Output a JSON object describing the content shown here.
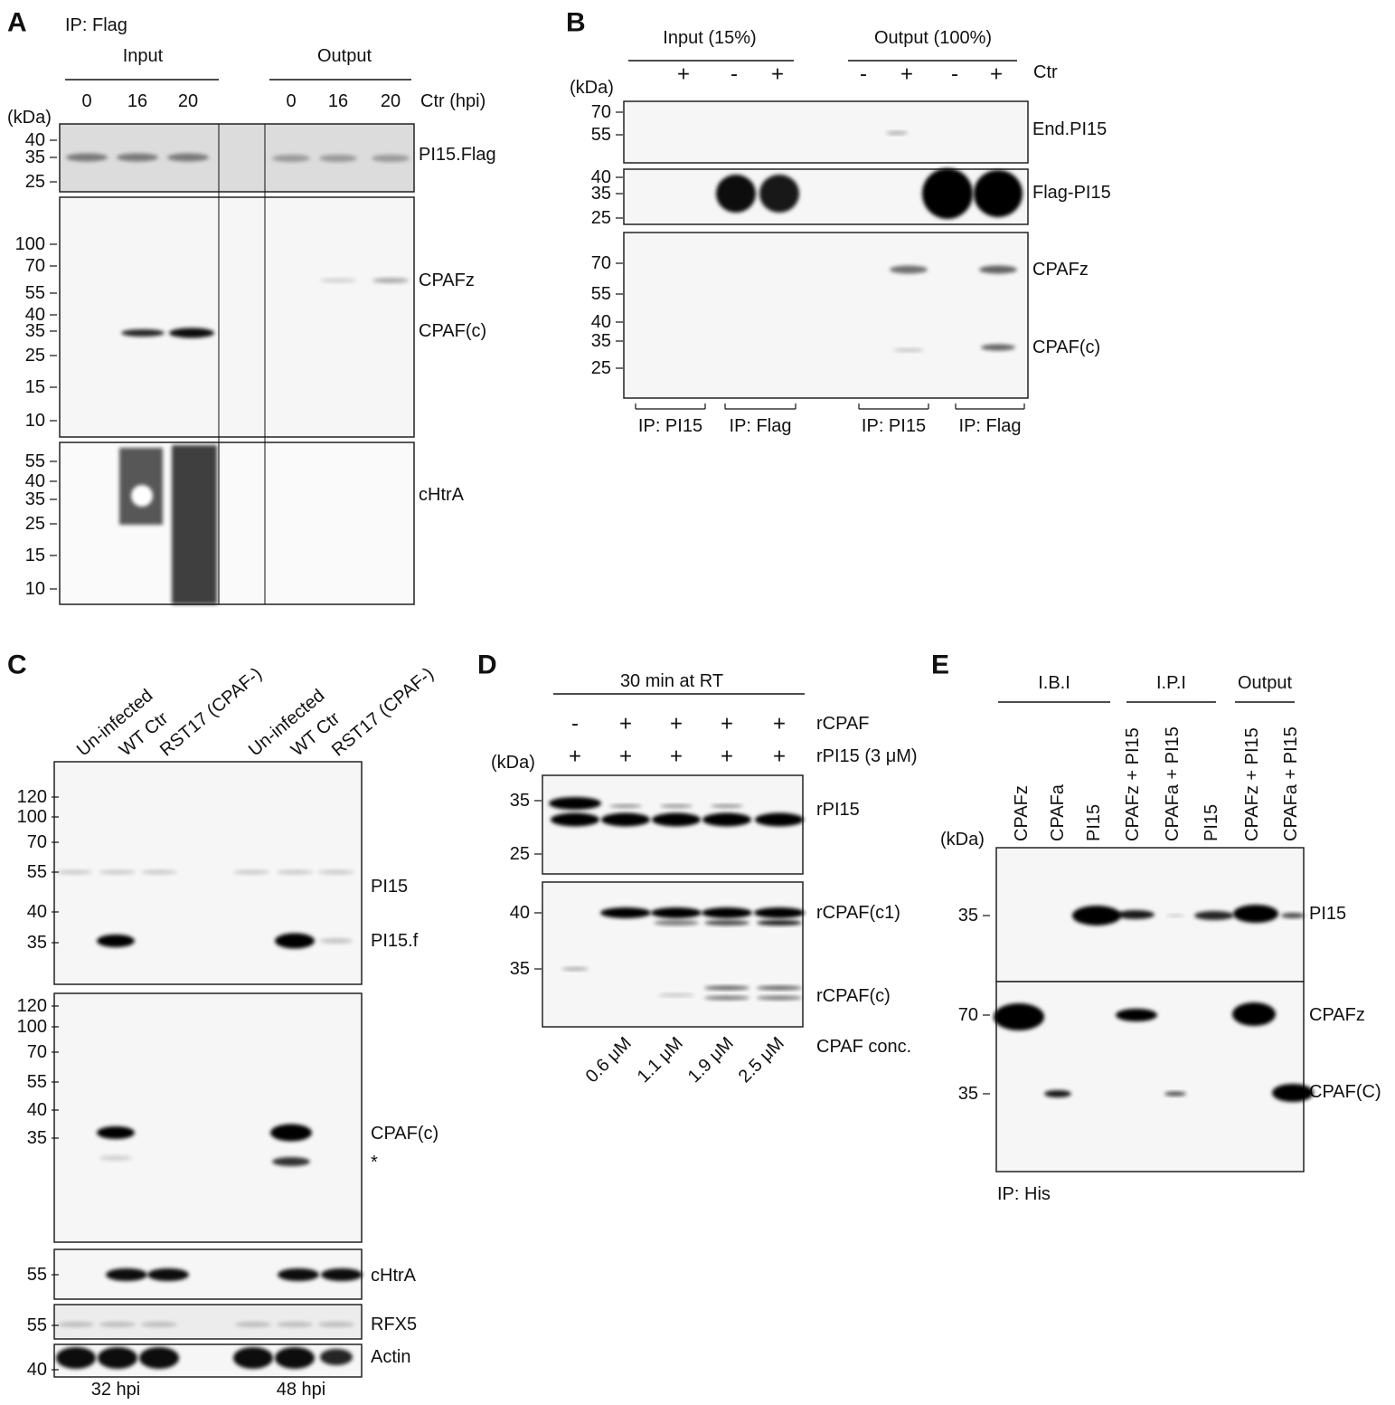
{
  "panel_a": {
    "letter": "A",
    "ip": "IP: Flag",
    "groups": [
      "Input",
      "Output"
    ],
    "lanes": [
      "0",
      "16",
      "20",
      "0",
      "16",
      "20"
    ],
    "lane_caption": "Ctr (hpi)",
    "unit": "(kDa)",
    "blots": [
      {
        "markers": [
          40,
          35,
          25
        ],
        "labels": [
          "PI15.Flag"
        ]
      },
      {
        "markers": [
          100,
          70,
          55,
          40,
          35,
          25,
          15,
          10
        ],
        "labels": [
          "CPAFz",
          "CPAF(c)"
        ]
      },
      {
        "markers": [
          55,
          40,
          35,
          25,
          15,
          10
        ],
        "labels": [
          "cHtrA"
        ]
      }
    ]
  },
  "panel_b": {
    "letter": "B",
    "groups": [
      "Input (15%)",
      "Output (100%)"
    ],
    "signs": [
      "+",
      "-",
      "+",
      "-",
      "+",
      "-",
      "+"
    ],
    "ctr": "Ctr",
    "unit": "(kDa)",
    "blots": [
      {
        "markers": [
          70,
          55
        ],
        "labels": [
          "End.PI15"
        ]
      },
      {
        "markers": [
          40,
          35,
          25
        ],
        "labels": [
          "Flag-PI15"
        ]
      },
      {
        "markers": [
          70,
          55,
          40,
          35,
          25
        ],
        "labels": [
          "CPAFz",
          "CPAF(c)"
        ]
      }
    ],
    "ip_labels": [
      "IP: PI15",
      "IP: Flag",
      "IP: PI15",
      "IP: Flag"
    ]
  },
  "panel_c": {
    "letter": "C",
    "lanes": [
      "Un-infected",
      "WT Ctr",
      "RST17 (CPAF-)",
      "Un-infected",
      "WT Ctr",
      "RST17 (CPAF-)"
    ],
    "blots": [
      {
        "markers": [
          120,
          100,
          70,
          55,
          40,
          35
        ],
        "labels": [
          "PI15",
          "PI15.f"
        ]
      },
      {
        "markers": [
          120,
          100,
          70,
          55,
          40,
          35
        ],
        "labels": [
          "CPAF(c)",
          "*"
        ]
      },
      {
        "markers": [
          55
        ],
        "labels": [
          "cHtrA"
        ]
      },
      {
        "markers": [
          55
        ],
        "labels": [
          "RFX5"
        ]
      },
      {
        "markers": [
          40
        ],
        "labels": [
          "Actin"
        ]
      }
    ],
    "times": [
      "32 hpi",
      "48 hpi"
    ]
  },
  "panel_d": {
    "letter": "D",
    "title": "30 min at RT",
    "rows": [
      {
        "label": "rCPAF",
        "signs": [
          "-",
          "+",
          "+",
          "+",
          "+"
        ]
      },
      {
        "label": "rPI15 (3 μM)",
        "signs": [
          "+",
          "+",
          "+",
          "+",
          "+"
        ]
      }
    ],
    "unit": "(kDa)",
    "blots": [
      {
        "markers": [
          35,
          25
        ],
        "labels": [
          "rPI15"
        ]
      },
      {
        "markers": [
          40,
          35
        ],
        "labels": [
          "rCPAF(c1)",
          "rCPAF(c)"
        ]
      }
    ],
    "conc_caption": "CPAF conc.",
    "conc": [
      "0.6 μM",
      "1.1 μM",
      "1.9 μM",
      "2.5 μM"
    ]
  },
  "panel_e": {
    "letter": "E",
    "groups": [
      "I.B.I",
      "I.P.I",
      "Output"
    ],
    "lanes": [
      "CPAFz",
      "CPAFa",
      "PI15",
      "CPAFz + PI15",
      "CPAFa + PI15",
      "PI15",
      "CPAFz + PI15",
      "CPAFa + PI15"
    ],
    "unit": "(kDa)",
    "blots": [
      {
        "markers": [
          35
        ],
        "labels": [
          "PI15"
        ]
      },
      {
        "markers": [
          70,
          35
        ],
        "labels": [
          "CPAFz",
          "CPAF(C)"
        ]
      }
    ],
    "ip": "IP: His"
  }
}
